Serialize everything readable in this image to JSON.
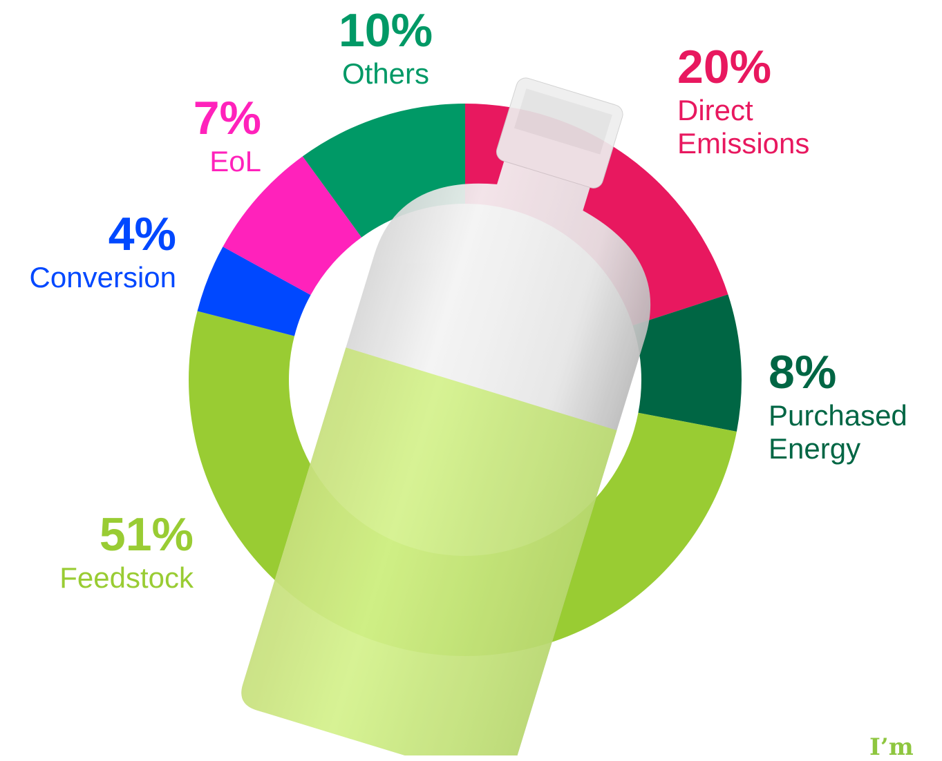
{
  "chart_data": {
    "type": "donut",
    "categories": [
      "Direct Emissions",
      "Purchased Energy",
      "Feedstock",
      "Conversion",
      "EoL",
      "Others"
    ],
    "values": [
      20,
      8,
      51,
      4,
      7,
      10
    ],
    "value_labels": [
      "20%",
      "8%",
      "51%",
      "4%",
      "7%",
      "10%"
    ],
    "colors": [
      "#e8185f",
      "#006644",
      "#99cc33",
      "#0048ff",
      "#ff22bb",
      "#009966"
    ]
  },
  "logo": "I’m"
}
